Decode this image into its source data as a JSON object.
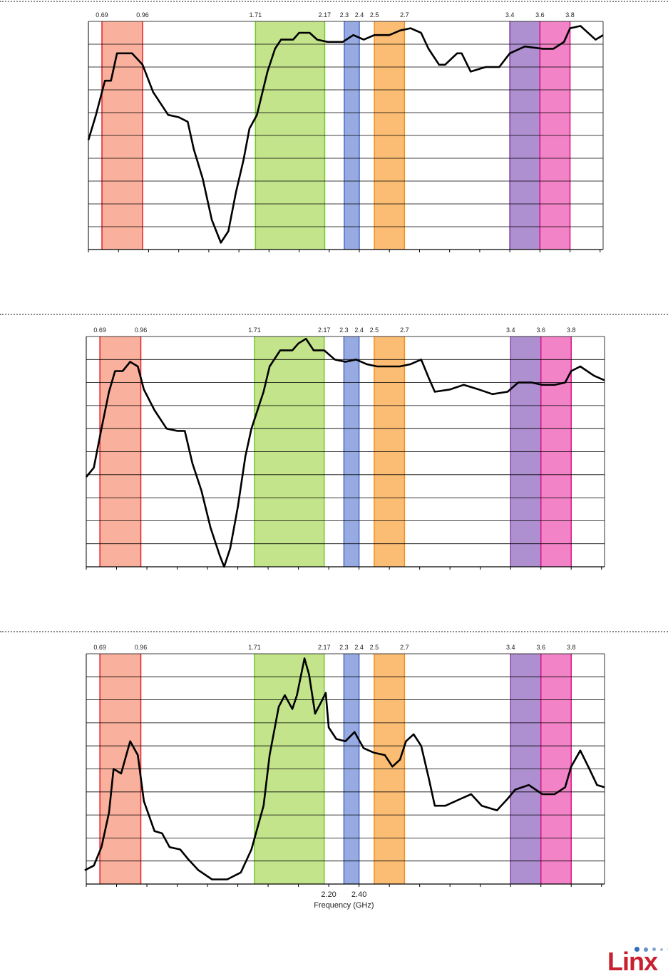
{
  "bands": [
    {
      "start": 0.69,
      "end": 0.96,
      "fill": "#f9b19d",
      "stroke": "#e62128"
    },
    {
      "start": 1.71,
      "end": 2.17,
      "fill": "#c3e48b",
      "stroke": "#76c82a"
    },
    {
      "start": 2.3,
      "end": 2.4,
      "fill": "#97aae2",
      "stroke": "#4a6fc6"
    },
    {
      "start": 2.5,
      "end": 2.7,
      "fill": "#fbbd74",
      "stroke": "#f4901e"
    },
    {
      "start": 3.4,
      "end": 3.6,
      "fill": "#ae8fd0",
      "stroke": "#7b3ea0"
    },
    {
      "start": 3.6,
      "end": 3.8,
      "fill": "#f283c7",
      "stroke": "#dd1489"
    }
  ],
  "band_labels": [
    "0.69",
    "0.96",
    "1.71",
    "2.17",
    "2.3",
    "2.4",
    "2.5",
    "2.7",
    "3.4",
    "3.6",
    "3.8"
  ],
  "band_label_positions_ghz": [
    0.69,
    0.96,
    1.71,
    2.17,
    2.3,
    2.4,
    2.5,
    2.7,
    3.4,
    3.6,
    3.8
  ],
  "chart_data": [
    {
      "type": "line",
      "title": "",
      "xlabel": "",
      "ylabel": "",
      "xlim": [
        0.6,
        4.02
      ],
      "ylim": [
        0,
        10
      ],
      "grid": true,
      "x_tick_step": 0.2,
      "series": [
        {
          "name": "response",
          "color": "#000000",
          "x": [
            0.6,
            0.65,
            0.71,
            0.75,
            0.79,
            0.89,
            0.96,
            1.03,
            1.13,
            1.2,
            1.26,
            1.3,
            1.36,
            1.42,
            1.48,
            1.53,
            1.58,
            1.63,
            1.67,
            1.72,
            1.79,
            1.84,
            1.88,
            1.96,
            2.0,
            2.07,
            2.12,
            2.19,
            2.29,
            2.36,
            2.43,
            2.5,
            2.6,
            2.67,
            2.74,
            2.81,
            2.86,
            2.93,
            2.97,
            3.05,
            3.08,
            3.14,
            3.24,
            3.33,
            3.4,
            3.5,
            3.62,
            3.69,
            3.76,
            3.8,
            3.87,
            3.97,
            4.02
          ],
          "y": [
            4.8,
            5.9,
            7.4,
            7.4,
            8.6,
            8.6,
            8.1,
            6.9,
            5.9,
            5.8,
            5.6,
            4.4,
            3.1,
            1.3,
            0.3,
            0.8,
            2.5,
            3.9,
            5.3,
            5.9,
            7.8,
            8.8,
            9.2,
            9.2,
            9.5,
            9.5,
            9.2,
            9.1,
            9.1,
            9.4,
            9.2,
            9.4,
            9.4,
            9.6,
            9.7,
            9.5,
            8.8,
            8.1,
            8.1,
            8.6,
            8.6,
            7.8,
            8.0,
            8.0,
            8.6,
            8.9,
            8.8,
            8.8,
            9.1,
            9.7,
            9.8,
            9.2,
            9.4
          ]
        }
      ]
    },
    {
      "type": "line",
      "title": "",
      "xlabel": "",
      "ylabel": "",
      "xlim": [
        0.6,
        4.02
      ],
      "ylim": [
        0,
        10
      ],
      "grid": true,
      "x_tick_step": 0.2,
      "series": [
        {
          "name": "response",
          "color": "#000000",
          "x": [
            0.6,
            0.65,
            0.7,
            0.75,
            0.79,
            0.84,
            0.89,
            0.94,
            0.98,
            1.05,
            1.13,
            1.2,
            1.25,
            1.3,
            1.36,
            1.42,
            1.48,
            1.51,
            1.55,
            1.6,
            1.65,
            1.69,
            1.77,
            1.81,
            1.88,
            1.96,
            2.0,
            2.05,
            2.1,
            2.17,
            2.24,
            2.31,
            2.38,
            2.45,
            2.52,
            2.6,
            2.67,
            2.74,
            2.81,
            2.86,
            2.9,
            3.0,
            3.09,
            3.19,
            3.28,
            3.38,
            3.45,
            3.54,
            3.61,
            3.69,
            3.76,
            3.8,
            3.86,
            3.95,
            4.02
          ],
          "y": [
            3.9,
            4.3,
            6.0,
            7.6,
            8.5,
            8.5,
            8.9,
            8.7,
            7.7,
            6.8,
            6.0,
            5.9,
            5.9,
            4.5,
            3.3,
            1.7,
            0.5,
            0.0,
            0.8,
            2.6,
            4.8,
            6.0,
            7.6,
            8.7,
            9.4,
            9.4,
            9.7,
            9.9,
            9.4,
            9.4,
            9.0,
            8.9,
            9.0,
            8.8,
            8.7,
            8.7,
            8.7,
            8.8,
            9.0,
            8.2,
            7.6,
            7.7,
            7.9,
            7.7,
            7.5,
            7.6,
            8.0,
            8.0,
            7.9,
            7.9,
            8.0,
            8.5,
            8.7,
            8.3,
            8.1
          ]
        }
      ]
    },
    {
      "type": "line",
      "title": "",
      "xlabel": "Frequency (GHz)",
      "ylabel": "",
      "xlim": [
        0.6,
        4.02
      ],
      "ylim": [
        0,
        10
      ],
      "grid": true,
      "x_tick_step": 0.2,
      "x_tick_labels": [
        {
          "value": 2.2,
          "label": "2.20"
        },
        {
          "value": 2.4,
          "label": "2.40"
        }
      ],
      "series": [
        {
          "name": "response",
          "color": "#000000",
          "x": [
            0.59,
            0.65,
            0.7,
            0.75,
            0.78,
            0.83,
            0.89,
            0.94,
            0.98,
            1.05,
            1.1,
            1.15,
            1.22,
            1.27,
            1.34,
            1.43,
            1.53,
            1.62,
            1.69,
            1.77,
            1.81,
            1.87,
            1.91,
            1.96,
            1.99,
            2.04,
            2.07,
            2.11,
            2.15,
            2.18,
            2.2,
            2.25,
            2.31,
            2.37,
            2.43,
            2.5,
            2.57,
            2.62,
            2.67,
            2.71,
            2.76,
            2.81,
            2.86,
            2.9,
            2.97,
            3.07,
            3.14,
            3.21,
            3.31,
            3.38,
            3.43,
            3.52,
            3.61,
            3.69,
            3.76,
            3.8,
            3.86,
            3.92,
            3.97,
            4.02
          ],
          "y": [
            0.6,
            0.8,
            1.6,
            3.1,
            5.0,
            4.8,
            6.2,
            5.6,
            3.6,
            2.3,
            2.2,
            1.6,
            1.5,
            1.1,
            0.6,
            0.2,
            0.2,
            0.5,
            1.5,
            3.4,
            5.6,
            7.7,
            8.2,
            7.6,
            8.2,
            9.8,
            9.1,
            7.4,
            7.9,
            8.3,
            6.8,
            6.3,
            6.2,
            6.6,
            5.9,
            5.7,
            5.6,
            5.1,
            5.4,
            6.2,
            6.5,
            6.0,
            4.6,
            3.4,
            3.4,
            3.7,
            3.9,
            3.4,
            3.2,
            3.7,
            4.1,
            4.3,
            3.9,
            3.9,
            4.2,
            5.1,
            5.8,
            5.0,
            4.3,
            4.2
          ]
        }
      ]
    }
  ],
  "logo": {
    "text": "Linx"
  }
}
